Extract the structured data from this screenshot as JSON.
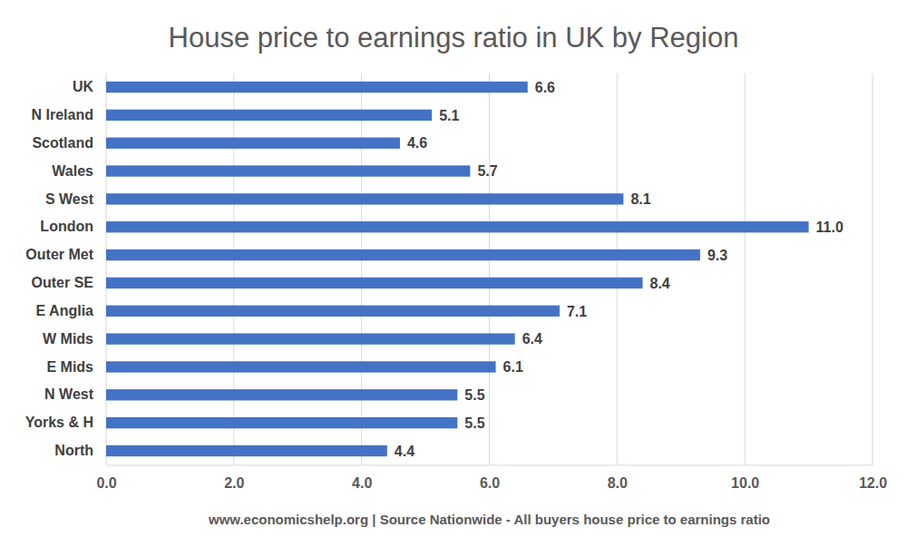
{
  "chart_data": {
    "type": "bar",
    "orientation": "horizontal",
    "title": "House price to earnings ratio in UK by Region",
    "xlabel": "www.economicshelp.org | Source Nationwide - All buyers house price to earnings ratio",
    "categories": [
      "UK",
      "N Ireland",
      "Scotland",
      "Wales",
      "S West",
      "London",
      "Outer Met",
      "Outer SE",
      "E Anglia",
      "W Mids",
      "E Mids",
      "N West",
      "Yorks & H",
      "North"
    ],
    "values": [
      6.6,
      5.1,
      4.6,
      5.7,
      8.1,
      11.0,
      9.3,
      8.4,
      7.1,
      6.4,
      6.1,
      5.5,
      5.5,
      4.4
    ],
    "value_labels": [
      "6.6",
      "5.1",
      "4.6",
      "5.7",
      "8.1",
      "11.0",
      "9.3",
      "8.4",
      "7.1",
      "6.4",
      "6.1",
      "5.5",
      "5.5",
      "4.4"
    ],
    "color": "#4472c4",
    "xlim": [
      0,
      12
    ],
    "xticks": [
      {
        "value": 0,
        "label": "0.0"
      },
      {
        "value": 2,
        "label": "2.0"
      },
      {
        "value": 4,
        "label": "4.0"
      },
      {
        "value": 6,
        "label": "6.0"
      },
      {
        "value": 8,
        "label": "8.0"
      },
      {
        "value": 10,
        "label": "10.0"
      },
      {
        "value": 12,
        "label": "12.0"
      }
    ],
    "grid": true,
    "data_labels": true
  }
}
